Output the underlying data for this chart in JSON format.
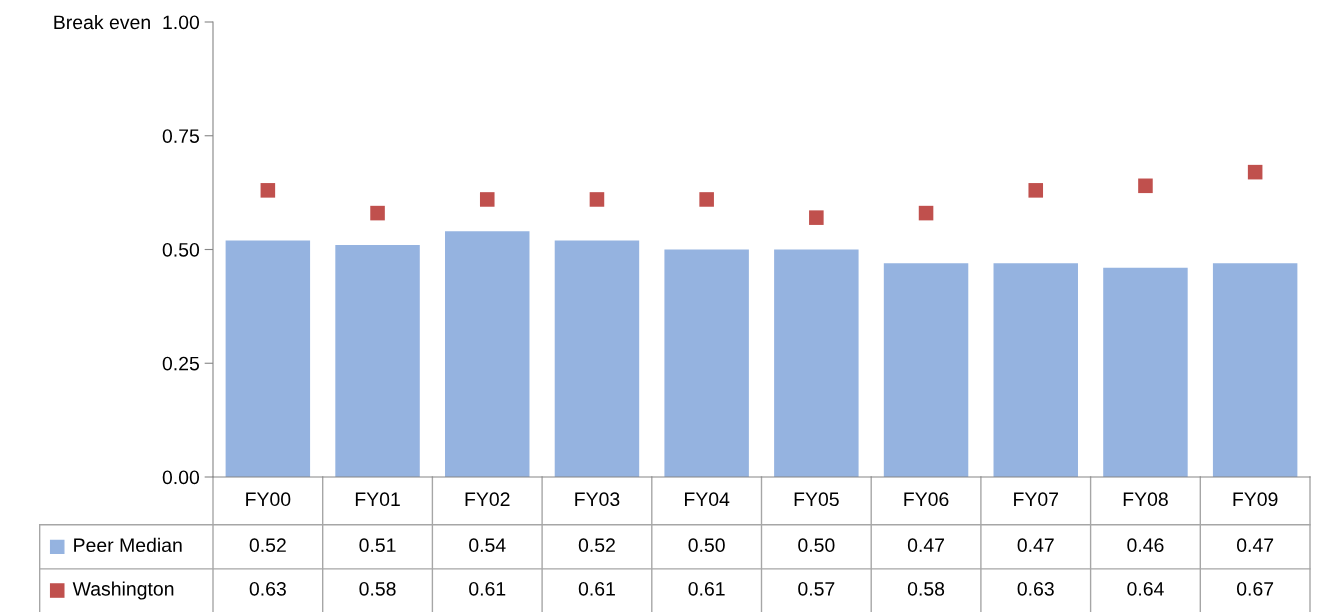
{
  "chart_data": {
    "type": "bar",
    "categories": [
      "FY00",
      "FY01",
      "FY02",
      "FY03",
      "FY04",
      "FY05",
      "FY06",
      "FY07",
      "FY08",
      "FY09"
    ],
    "series": [
      {
        "name": "Peer Median",
        "color": "#95b3e0",
        "values": [
          0.52,
          0.51,
          0.54,
          0.52,
          0.5,
          0.5,
          0.47,
          0.47,
          0.46,
          0.47
        ],
        "value_labels": [
          "0.52",
          "0.51",
          "0.54",
          "0.52",
          "0.50",
          "0.50",
          "0.47",
          "0.47",
          "0.46",
          "0.47"
        ]
      },
      {
        "name": "Washington",
        "type": "scatter",
        "marker": "square",
        "color": "#c0504d",
        "values": [
          0.63,
          0.58,
          0.61,
          0.61,
          0.61,
          0.57,
          0.58,
          0.63,
          0.64,
          0.67
        ],
        "value_labels": [
          "0.63",
          "0.58",
          "0.61",
          "0.61",
          "0.61",
          "0.57",
          "0.58",
          "0.63",
          "0.64",
          "0.67"
        ]
      }
    ],
    "ylim": [
      0,
      1
    ],
    "yticks": [
      {
        "value": 0,
        "label": "0.00"
      },
      {
        "value": 0.25,
        "label": "0.25"
      },
      {
        "value": 0.5,
        "label": "0.50"
      },
      {
        "value": 0.75,
        "label": "0.75"
      },
      {
        "value": 1,
        "label": "Break even  1.00"
      }
    ],
    "legend": "bottom"
  }
}
